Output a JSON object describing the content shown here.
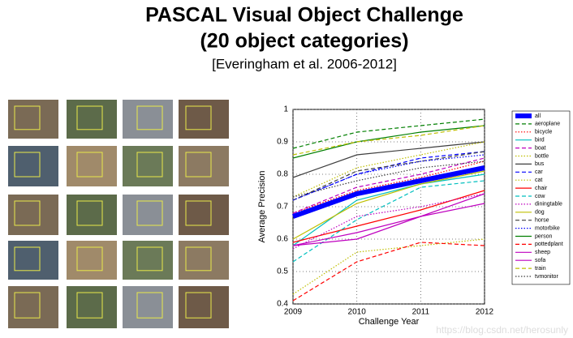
{
  "slide": {
    "title_lines": [
      "PASCAL Visual Object Challenge",
      "(20 object categories)"
    ],
    "citation": "[Everingham et al. 2006-2012]",
    "watermark": "https://blog.csdn.net/herosunly"
  },
  "chart_data": {
    "type": "line",
    "xlabel": "Challenge Year",
    "ylabel": "Average Precision",
    "x": [
      2009,
      2010,
      2011,
      2012
    ],
    "xlim": [
      2009,
      2012
    ],
    "xticks": [
      2009,
      2010,
      2011,
      2012
    ],
    "ylim": [
      0.4,
      1
    ],
    "yticks": [
      0.4,
      0.5,
      0.6,
      0.7,
      0.8,
      0.9,
      1
    ],
    "grid": true,
    "legend": "outside right",
    "series": [
      {
        "name": "all",
        "color": "#0000ff",
        "style": "solid",
        "linewidth": 6,
        "values": [
          0.67,
          0.74,
          0.78,
          0.82
        ]
      },
      {
        "name": "aeroplane",
        "color": "#007f00",
        "style": "dashed",
        "values": [
          0.88,
          0.93,
          0.95,
          0.97
        ]
      },
      {
        "name": "bicycle",
        "color": "#ff0000",
        "style": "dotted",
        "values": [
          0.68,
          0.75,
          0.79,
          0.84
        ]
      },
      {
        "name": "bird",
        "color": "#00bfbf",
        "style": "solid",
        "values": [
          0.58,
          0.72,
          0.77,
          0.8
        ]
      },
      {
        "name": "boat",
        "color": "#bf00bf",
        "style": "dashed",
        "values": [
          0.68,
          0.76,
          0.8,
          0.85
        ]
      },
      {
        "name": "bottle",
        "color": "#bfbf00",
        "style": "dotted",
        "values": [
          0.43,
          0.56,
          0.58,
          0.6
        ]
      },
      {
        "name": "bus",
        "color": "#3f3f3f",
        "style": "solid",
        "values": [
          0.79,
          0.86,
          0.88,
          0.9
        ]
      },
      {
        "name": "car",
        "color": "#0000ff",
        "style": "dashed",
        "values": [
          0.72,
          0.8,
          0.85,
          0.87
        ]
      },
      {
        "name": "cat",
        "color": "#bfbf00",
        "style": "dotted",
        "values": [
          0.73,
          0.82,
          0.86,
          0.9
        ]
      },
      {
        "name": "chair",
        "color": "#ff0000",
        "style": "solid",
        "values": [
          0.59,
          0.64,
          0.69,
          0.75
        ]
      },
      {
        "name": "cow",
        "color": "#00bfbf",
        "style": "dashed",
        "values": [
          0.53,
          0.66,
          0.76,
          0.78
        ]
      },
      {
        "name": "diningtable",
        "color": "#bf00bf",
        "style": "dotted",
        "values": [
          0.57,
          0.67,
          0.7,
          0.74
        ]
      },
      {
        "name": "dog",
        "color": "#bfbf00",
        "style": "solid",
        "values": [
          0.6,
          0.71,
          0.77,
          0.81
        ]
      },
      {
        "name": "horse",
        "color": "#3f3f3f",
        "style": "dashed",
        "values": [
          0.72,
          0.81,
          0.84,
          0.87
        ]
      },
      {
        "name": "motorbike",
        "color": "#0000ff",
        "style": "dotted",
        "values": [
          0.72,
          0.8,
          0.84,
          0.86
        ]
      },
      {
        "name": "person",
        "color": "#007f00",
        "style": "solid",
        "values": [
          0.85,
          0.9,
          0.93,
          0.95
        ]
      },
      {
        "name": "pottedplant",
        "color": "#ff0000",
        "style": "dashed",
        "values": [
          0.41,
          0.53,
          0.59,
          0.58
        ]
      },
      {
        "name": "sheep",
        "color": "#bf00bf",
        "style": "solid",
        "values": [
          0.58,
          0.6,
          0.67,
          0.74
        ]
      },
      {
        "name": "sofa",
        "color": "#bf00bf",
        "style": "solid",
        "values": [
          0.58,
          0.62,
          0.67,
          0.71
        ]
      },
      {
        "name": "train",
        "color": "#bfbf00",
        "style": "dashed",
        "values": [
          0.86,
          0.9,
          0.92,
          0.95
        ]
      },
      {
        "name": "tvmonitor",
        "color": "#3f3f3f",
        "style": "dotted",
        "values": [
          0.73,
          0.78,
          0.82,
          0.84
        ]
      }
    ]
  }
}
